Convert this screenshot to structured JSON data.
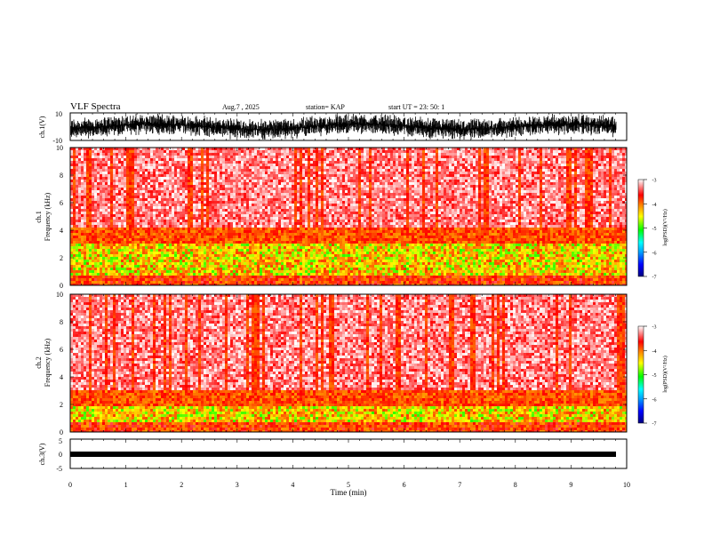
{
  "header": {
    "title": "VLF Spectra",
    "date": "Aug.7 , 2025",
    "station": "station= KAP",
    "start": "start UT = 23: 50: 1"
  },
  "chart_data": [
    {
      "type": "line",
      "name": "ch1-waveform",
      "ylabel": "ch.1(V)",
      "ylim": [
        -10,
        10
      ],
      "yticks": [
        "10",
        "-10"
      ],
      "xlim": [
        0,
        10
      ]
    },
    {
      "type": "heatmap",
      "name": "ch1-spectrogram",
      "ylabel": "Frequency (kHz)",
      "channel_label": "ch.1",
      "ylim": [
        0,
        10
      ],
      "yticks": [
        "0",
        "2",
        "4",
        "6",
        "8",
        "10"
      ],
      "xlim": [
        0,
        10
      ],
      "colorbar": {
        "label": "log(PSD)(V²/Hz)",
        "range": [
          -7,
          -3
        ],
        "ticks": [
          "-3",
          "-4",
          "-5",
          "-6",
          "-7"
        ]
      }
    },
    {
      "type": "heatmap",
      "name": "ch2-spectrogram",
      "ylabel": "Frequency (kHz)",
      "channel_label": "ch.2",
      "ylim": [
        0,
        10
      ],
      "yticks": [
        "0",
        "2",
        "4",
        "6",
        "8",
        "10"
      ],
      "xlim": [
        0,
        10
      ],
      "colorbar": {
        "label": "log(PSD)(V²/Hz)",
        "range": [
          -7,
          -3
        ],
        "ticks": [
          "-3",
          "-4",
          "-5",
          "-6",
          "-7"
        ]
      }
    },
    {
      "type": "line",
      "name": "ch3-waveform",
      "ylabel": "ch.3(V)",
      "ylim": [
        -5,
        5
      ],
      "yticks": [
        "5",
        "0",
        "-5"
      ],
      "xlim": [
        0,
        10
      ],
      "xlabel": "Time (min)",
      "xticks": [
        "0",
        "1",
        "2",
        "3",
        "4",
        "5",
        "6",
        "7",
        "8",
        "9",
        "10"
      ]
    }
  ],
  "colors": {
    "colormap": [
      "#000080",
      "#0000ff",
      "#00a0ff",
      "#00ffff",
      "#00ff00",
      "#ffff00",
      "#ff8000",
      "#ff0000",
      "#ffffff"
    ]
  }
}
